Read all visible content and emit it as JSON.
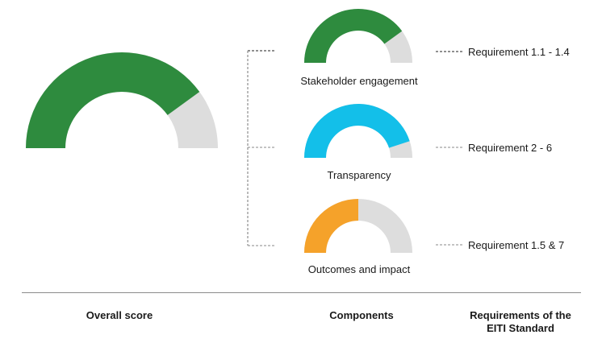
{
  "colors": {
    "track": "#dddddd",
    "connector": "#555555"
  },
  "overall": {
    "value": 0.8,
    "color": "#2e8b3e"
  },
  "components": [
    {
      "label": "Stakeholder engagement",
      "value": 0.8,
      "color": "#2e8b3e",
      "requirement": "Requirement 1.1 - 1.4"
    },
    {
      "label": "Transparency",
      "value": 0.9,
      "color": "#13bfe9",
      "requirement": "Requirement 2 - 6"
    },
    {
      "label": "Outcomes and impact",
      "value": 0.5,
      "color": "#f5a22a",
      "requirement": "Requirement 1.5 & 7"
    }
  ],
  "footer": {
    "overall": "Overall score",
    "components": "Components",
    "requirements_line1": "Requirements of the",
    "requirements_line2": "EITI Standard"
  }
}
